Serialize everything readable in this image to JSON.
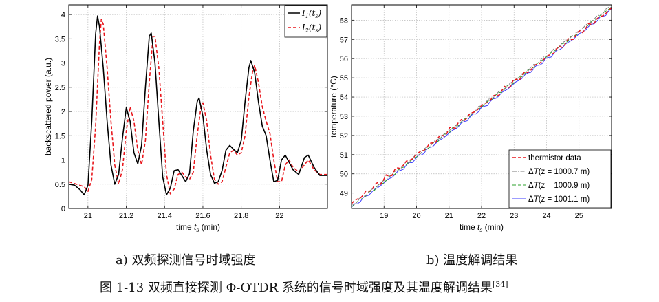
{
  "captions": {
    "sub_a": "a)  双频探测信号时域强度",
    "sub_b": "b)  温度解调结果",
    "figure": "图 1-13  双频直接探测 Φ-OTDR 系统的信号时域强度及其温度解调结果",
    "figure_ref": "[34]"
  },
  "chart_data": [
    {
      "type": "line",
      "title": "",
      "xlabel": "time t_s (min)",
      "ylabel": "backscattered power (a.u.)",
      "xlim": [
        20.9,
        22.25
      ],
      "ylim": [
        0,
        4.2
      ],
      "xticks": [
        "21",
        "21.2",
        "21.4",
        "21.6",
        "21.8",
        "22"
      ],
      "yticks": [
        "0",
        "0.5",
        "1",
        "1.5",
        "2",
        "2.5",
        "3",
        "3.5",
        "4"
      ],
      "grid": true,
      "legend_position": "top-right",
      "series": [
        {
          "name": "I1(ts)",
          "legend_main": "I",
          "legend_sub": "1",
          "legend_arg": "t",
          "legend_arg_sub": "s",
          "color": "#000000",
          "style": "solid",
          "points": [
            [
              20.9,
              0.5
            ],
            [
              20.93,
              0.48
            ],
            [
              20.96,
              0.38
            ],
            [
              20.98,
              0.28
            ],
            [
              21.0,
              0.48
            ],
            [
              21.02,
              1.8
            ],
            [
              21.04,
              3.6
            ],
            [
              21.05,
              3.97
            ],
            [
              21.06,
              3.75
            ],
            [
              21.08,
              2.9
            ],
            [
              21.1,
              1.8
            ],
            [
              21.12,
              0.9
            ],
            [
              21.14,
              0.5
            ],
            [
              21.16,
              0.7
            ],
            [
              21.18,
              1.45
            ],
            [
              21.2,
              2.08
            ],
            [
              21.22,
              1.8
            ],
            [
              21.24,
              1.15
            ],
            [
              21.26,
              0.92
            ],
            [
              21.28,
              1.3
            ],
            [
              21.3,
              2.5
            ],
            [
              21.32,
              3.55
            ],
            [
              21.33,
              3.62
            ],
            [
              21.35,
              3.0
            ],
            [
              21.37,
              1.8
            ],
            [
              21.39,
              0.65
            ],
            [
              21.41,
              0.28
            ],
            [
              21.43,
              0.42
            ],
            [
              21.45,
              0.78
            ],
            [
              21.47,
              0.8
            ],
            [
              21.49,
              0.68
            ],
            [
              21.51,
              0.55
            ],
            [
              21.53,
              0.72
            ],
            [
              21.55,
              1.6
            ],
            [
              21.57,
              2.2
            ],
            [
              21.58,
              2.28
            ],
            [
              21.6,
              1.9
            ],
            [
              21.62,
              1.2
            ],
            [
              21.64,
              0.7
            ],
            [
              21.66,
              0.52
            ],
            [
              21.68,
              0.55
            ],
            [
              21.7,
              0.78
            ],
            [
              21.72,
              1.2
            ],
            [
              21.74,
              1.3
            ],
            [
              21.76,
              1.22
            ],
            [
              21.78,
              1.15
            ],
            [
              21.8,
              1.4
            ],
            [
              21.82,
              2.2
            ],
            [
              21.84,
              2.9
            ],
            [
              21.85,
              3.05
            ],
            [
              21.87,
              2.8
            ],
            [
              21.89,
              2.2
            ],
            [
              21.91,
              1.7
            ],
            [
              21.93,
              1.5
            ],
            [
              21.95,
              1.0
            ],
            [
              21.97,
              0.55
            ],
            [
              21.99,
              0.58
            ],
            [
              22.01,
              1.0
            ],
            [
              22.03,
              1.1
            ],
            [
              22.05,
              0.95
            ],
            [
              22.07,
              0.8
            ],
            [
              22.1,
              0.7
            ],
            [
              22.13,
              1.05
            ],
            [
              22.15,
              1.1
            ],
            [
              22.18,
              0.85
            ],
            [
              22.21,
              0.68
            ],
            [
              22.25,
              0.68
            ]
          ]
        },
        {
          "name": "I2(ts)",
          "legend_main": "I",
          "legend_sub": "2",
          "legend_arg": "t",
          "legend_arg_sub": "s",
          "color": "#e8151b",
          "style": "dashed",
          "points": [
            [
              20.9,
              0.55
            ],
            [
              20.94,
              0.5
            ],
            [
              20.98,
              0.45
            ],
            [
              21.0,
              0.35
            ],
            [
              21.02,
              0.6
            ],
            [
              21.04,
              1.7
            ],
            [
              21.06,
              3.4
            ],
            [
              21.07,
              3.9
            ],
            [
              21.08,
              3.8
            ],
            [
              21.1,
              2.9
            ],
            [
              21.12,
              1.8
            ],
            [
              21.14,
              0.9
            ],
            [
              21.16,
              0.5
            ],
            [
              21.18,
              0.8
            ],
            [
              21.2,
              1.6
            ],
            [
              21.22,
              2.1
            ],
            [
              21.24,
              1.8
            ],
            [
              21.26,
              1.2
            ],
            [
              21.28,
              0.9
            ],
            [
              21.3,
              1.4
            ],
            [
              21.32,
              2.6
            ],
            [
              21.34,
              3.55
            ],
            [
              21.35,
              3.55
            ],
            [
              21.37,
              2.9
            ],
            [
              21.39,
              1.8
            ],
            [
              21.41,
              0.7
            ],
            [
              21.43,
              0.3
            ],
            [
              21.45,
              0.4
            ],
            [
              21.47,
              0.7
            ],
            [
              21.49,
              0.75
            ],
            [
              21.51,
              0.65
            ],
            [
              21.53,
              0.6
            ],
            [
              21.55,
              0.75
            ],
            [
              21.57,
              1.5
            ],
            [
              21.59,
              2.1
            ],
            [
              21.6,
              2.18
            ],
            [
              21.62,
              1.8
            ],
            [
              21.64,
              1.1
            ],
            [
              21.66,
              0.6
            ],
            [
              21.68,
              0.5
            ],
            [
              21.7,
              0.55
            ],
            [
              21.72,
              0.85
            ],
            [
              21.74,
              1.15
            ],
            [
              21.76,
              1.2
            ],
            [
              21.78,
              1.1
            ],
            [
              21.8,
              1.15
            ],
            [
              21.82,
              1.5
            ],
            [
              21.84,
              2.3
            ],
            [
              21.86,
              2.85
            ],
            [
              21.87,
              2.95
            ],
            [
              21.89,
              2.6
            ],
            [
              21.91,
              2.1
            ],
            [
              21.93,
              1.8
            ],
            [
              21.95,
              1.55
            ],
            [
              21.97,
              1.0
            ],
            [
              21.99,
              0.55
            ],
            [
              22.01,
              0.55
            ],
            [
              22.03,
              0.9
            ],
            [
              22.05,
              1.0
            ],
            [
              22.07,
              0.85
            ],
            [
              22.1,
              0.75
            ],
            [
              22.13,
              0.9
            ],
            [
              22.15,
              1.0
            ],
            [
              22.18,
              0.8
            ],
            [
              22.21,
              0.7
            ],
            [
              22.25,
              0.7
            ]
          ]
        }
      ]
    },
    {
      "type": "line",
      "title": "",
      "xlabel": "time t_s (min)",
      "ylabel": "temperature (°C)",
      "xlim": [
        18,
        26
      ],
      "ylim": [
        48.2,
        58.8
      ],
      "xticks": [
        "19",
        "20",
        "21",
        "22",
        "23",
        "24",
        "25"
      ],
      "yticks": [
        "49",
        "50",
        "51",
        "52",
        "53",
        "54",
        "55",
        "56",
        "57",
        "58"
      ],
      "grid": true,
      "legend_position": "bottom-right",
      "series": [
        {
          "name": "thermistor data",
          "color": "#e8151b",
          "style": "dashed",
          "start": [
            18,
            48.45
          ],
          "end": [
            26,
            58.6
          ]
        },
        {
          "name": "ΔT(z = 1000.7 m)",
          "legend_prefix": "Δ",
          "legend_var": "T",
          "legend_rest": "(z = 1000.7 m)",
          "color": "#7a7a7a",
          "style": "dashdot",
          "start": [
            18,
            48.35
          ],
          "end": [
            26,
            58.75
          ]
        },
        {
          "name": "ΔT(z = 1000.9 m)",
          "legend_prefix": "Δ",
          "legend_var": "T",
          "legend_rest": "(z = 1000.9 m)",
          "color": "#2ca02c",
          "style": "dashed",
          "start": [
            18,
            48.3
          ],
          "end": [
            26,
            58.7
          ]
        },
        {
          "name": "ΔT(z = 1001.1 m)",
          "legend_prefix": "Δ",
          "legend_var": "T",
          "legend_rest": "(z = 1001.1 m)",
          "color": "#3b3bff",
          "style": "solid",
          "start": [
            18,
            48.25
          ],
          "end": [
            26,
            58.55
          ]
        }
      ]
    }
  ]
}
